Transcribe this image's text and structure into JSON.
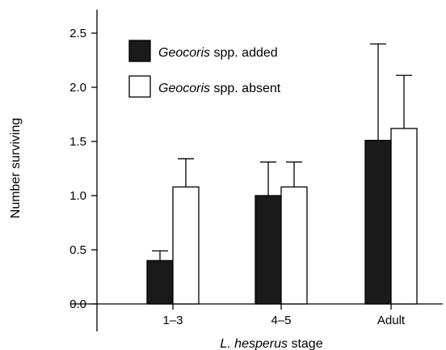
{
  "chart_data": {
    "type": "bar",
    "categories": [
      "1–3",
      "4–5",
      "Adult"
    ],
    "series": [
      {
        "name_italic": "Geocoris",
        "name_rest": " spp. added",
        "color": "#1a1a1a",
        "values": [
          0.4,
          1.0,
          1.51
        ],
        "error_upper": [
          0.49,
          1.31,
          2.4
        ]
      },
      {
        "name_italic": "Geocoris",
        "name_rest": " spp. absent",
        "color": "#ffffff",
        "values": [
          1.08,
          1.08,
          1.62
        ],
        "error_upper": [
          1.34,
          1.31,
          2.11
        ]
      }
    ],
    "ylabel": "Number surviving",
    "xlabel_italic": "L. hesperus",
    "xlabel_rest": " stage",
    "ylim": [
      0,
      2.7
    ],
    "yticks": [
      "0.0",
      "0.5",
      "1.0",
      "1.5",
      "2.0",
      "2.5"
    ],
    "legend_position": "top-left",
    "grid": false
  }
}
